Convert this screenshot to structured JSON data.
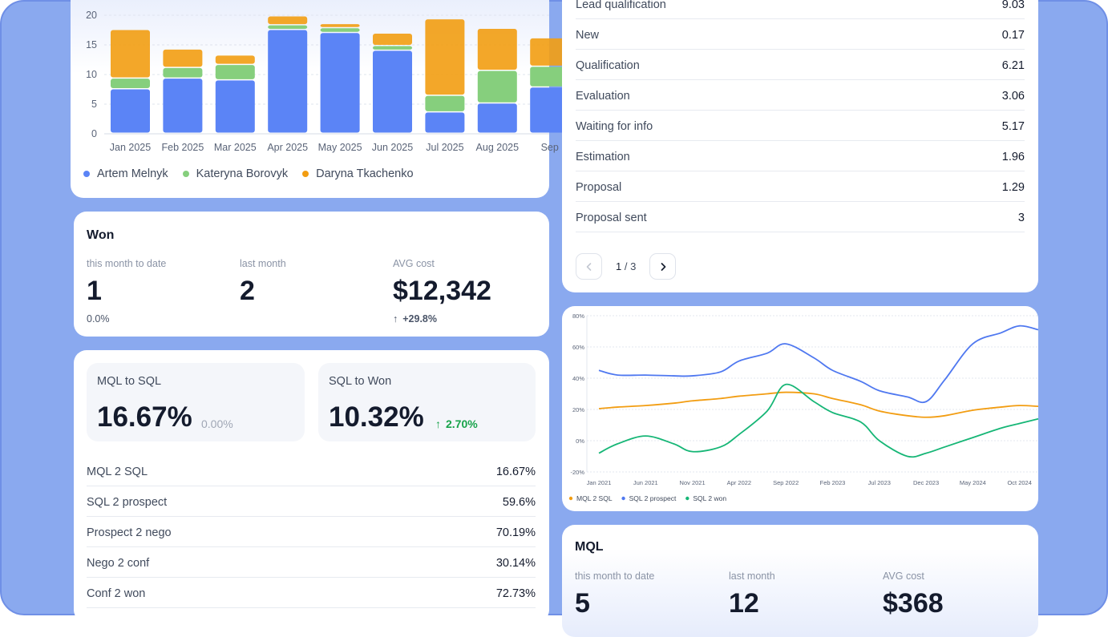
{
  "stacked_bar": {
    "y_ticks": [
      "20",
      "15",
      "10",
      "5",
      "0"
    ],
    "legend": [
      {
        "name": "Artem Melnyk",
        "color": "#5b84f6"
      },
      {
        "name": "Kateryna Borovyk",
        "color": "#86cf7d"
      },
      {
        "name": "Daryna Tkachenko",
        "color": "#f29d12"
      }
    ]
  },
  "chart_data": [
    {
      "type": "bar",
      "stacked": true,
      "categories": [
        "Jan 2025",
        "Feb 2025",
        "Mar 2025",
        "Apr 2025",
        "May 2025",
        "Jun 2025",
        "Jul 2025",
        "Aug 2025",
        "Sep"
      ],
      "series": [
        {
          "name": "Artem Melnyk",
          "color": "#5b84f6",
          "values": [
            7.5,
            9.3,
            9,
            17.5,
            17,
            14,
            3.6,
            5.1,
            7.8
          ]
        },
        {
          "name": "Kateryna Borovyk",
          "color": "#86cf7d",
          "values": [
            1.8,
            1.8,
            2.6,
            0.8,
            0.8,
            0.8,
            2.8,
            5.5,
            3.5
          ]
        },
        {
          "name": "Daryna Tkachenko",
          "color": "#f29d12",
          "values": [
            8.2,
            3.1,
            1.6,
            1.5,
            0.7,
            2.1,
            12.9,
            7.1,
            4.8
          ]
        }
      ],
      "ylim": [
        0,
        20
      ],
      "legend_position": "bottom-left",
      "grid": true
    },
    {
      "type": "line",
      "x_ticks": [
        "Jan 2021",
        "Jun 2021",
        "Nov 2021",
        "Apr 2022",
        "Sep 2022",
        "Feb 2023",
        "Jul 2023",
        "Dec 2023",
        "May 2024",
        "Oct 2024"
      ],
      "y_ticks": [
        "80%",
        "60%",
        "40%",
        "20%",
        "0%",
        "-20%"
      ],
      "ylim": [
        -20,
        80
      ],
      "x": [
        "2021-01",
        "2021-03",
        "2021-06",
        "2021-09",
        "2021-11",
        "2022-02",
        "2022-04",
        "2022-07",
        "2022-09",
        "2022-12",
        "2023-02",
        "2023-05",
        "2023-07",
        "2023-10",
        "2023-12",
        "2024-02",
        "2024-05",
        "2024-08",
        "2024-10",
        "2024-12"
      ],
      "series": [
        {
          "name": "MQL 2 SQL",
          "color": "#f29d12",
          "values": [
            20.5,
            21.5,
            22.5,
            24,
            25.5,
            27,
            28.5,
            30,
            31,
            30,
            27,
            23,
            19,
            16,
            15,
            16,
            19.5,
            21.5,
            22.5,
            22
          ]
        },
        {
          "name": "SQL 2 prospect",
          "color": "#4f78f0",
          "values": [
            45,
            42,
            42,
            41.5,
            41.5,
            44,
            51,
            56,
            62,
            53,
            45,
            38,
            32,
            28,
            25,
            39,
            62,
            69,
            73.5,
            71
          ]
        },
        {
          "name": "SQL 2 won",
          "color": "#16b676",
          "values": [
            -8,
            -2,
            3,
            -2,
            -7,
            -4,
            4,
            19,
            36,
            25,
            18,
            12,
            0,
            -10,
            -8,
            -4,
            2,
            8,
            11,
            14
          ]
        }
      ],
      "legend_position": "bottom-left",
      "grid": true
    }
  ],
  "won": {
    "title": "Won",
    "stats": [
      {
        "label": "this month to date",
        "value": "1",
        "sub": "0.0%"
      },
      {
        "label": "last month",
        "value": "2"
      },
      {
        "label": "AVG cost",
        "value": "$12,342",
        "change": "+29.8%",
        "change_color": "#17a34a"
      }
    ]
  },
  "conversion": {
    "tiles": [
      {
        "label": "MQL to SQL",
        "value": "16.67%",
        "change": "0.00%"
      },
      {
        "label": "SQL to Won",
        "value": "10.32%",
        "change": "2.70%",
        "change_color": "#17a34a"
      }
    ],
    "rows": [
      {
        "k": "MQL 2 SQL",
        "v": "16.67%"
      },
      {
        "k": "SQL 2 prospect",
        "v": "59.6%"
      },
      {
        "k": "Prospect 2 nego",
        "v": "70.19%"
      },
      {
        "k": "Nego 2 conf",
        "v": "30.14%"
      },
      {
        "k": "Conf 2 won",
        "v": "72.73%"
      }
    ]
  },
  "stages": {
    "rows": [
      {
        "k": "Lead qualification",
        "v": "9.03"
      },
      {
        "k": "New",
        "v": "0.17"
      },
      {
        "k": "Qualification",
        "v": "6.21"
      },
      {
        "k": "Evaluation",
        "v": "3.06"
      },
      {
        "k": "Waiting for info",
        "v": "5.17"
      },
      {
        "k": "Estimation",
        "v": "1.96"
      },
      {
        "k": "Proposal",
        "v": "1.29"
      },
      {
        "k": "Proposal sent",
        "v": "3"
      }
    ],
    "pager": {
      "current": "1",
      "total": "/ 3",
      "prev_icon": "chevron-left",
      "next_icon": "chevron-right"
    }
  },
  "mql": {
    "title": "MQL",
    "stats": [
      {
        "label": "this month to date",
        "value": "5"
      },
      {
        "label": "last month",
        "value": "12"
      },
      {
        "label": "AVG cost",
        "value": "$368"
      }
    ]
  }
}
